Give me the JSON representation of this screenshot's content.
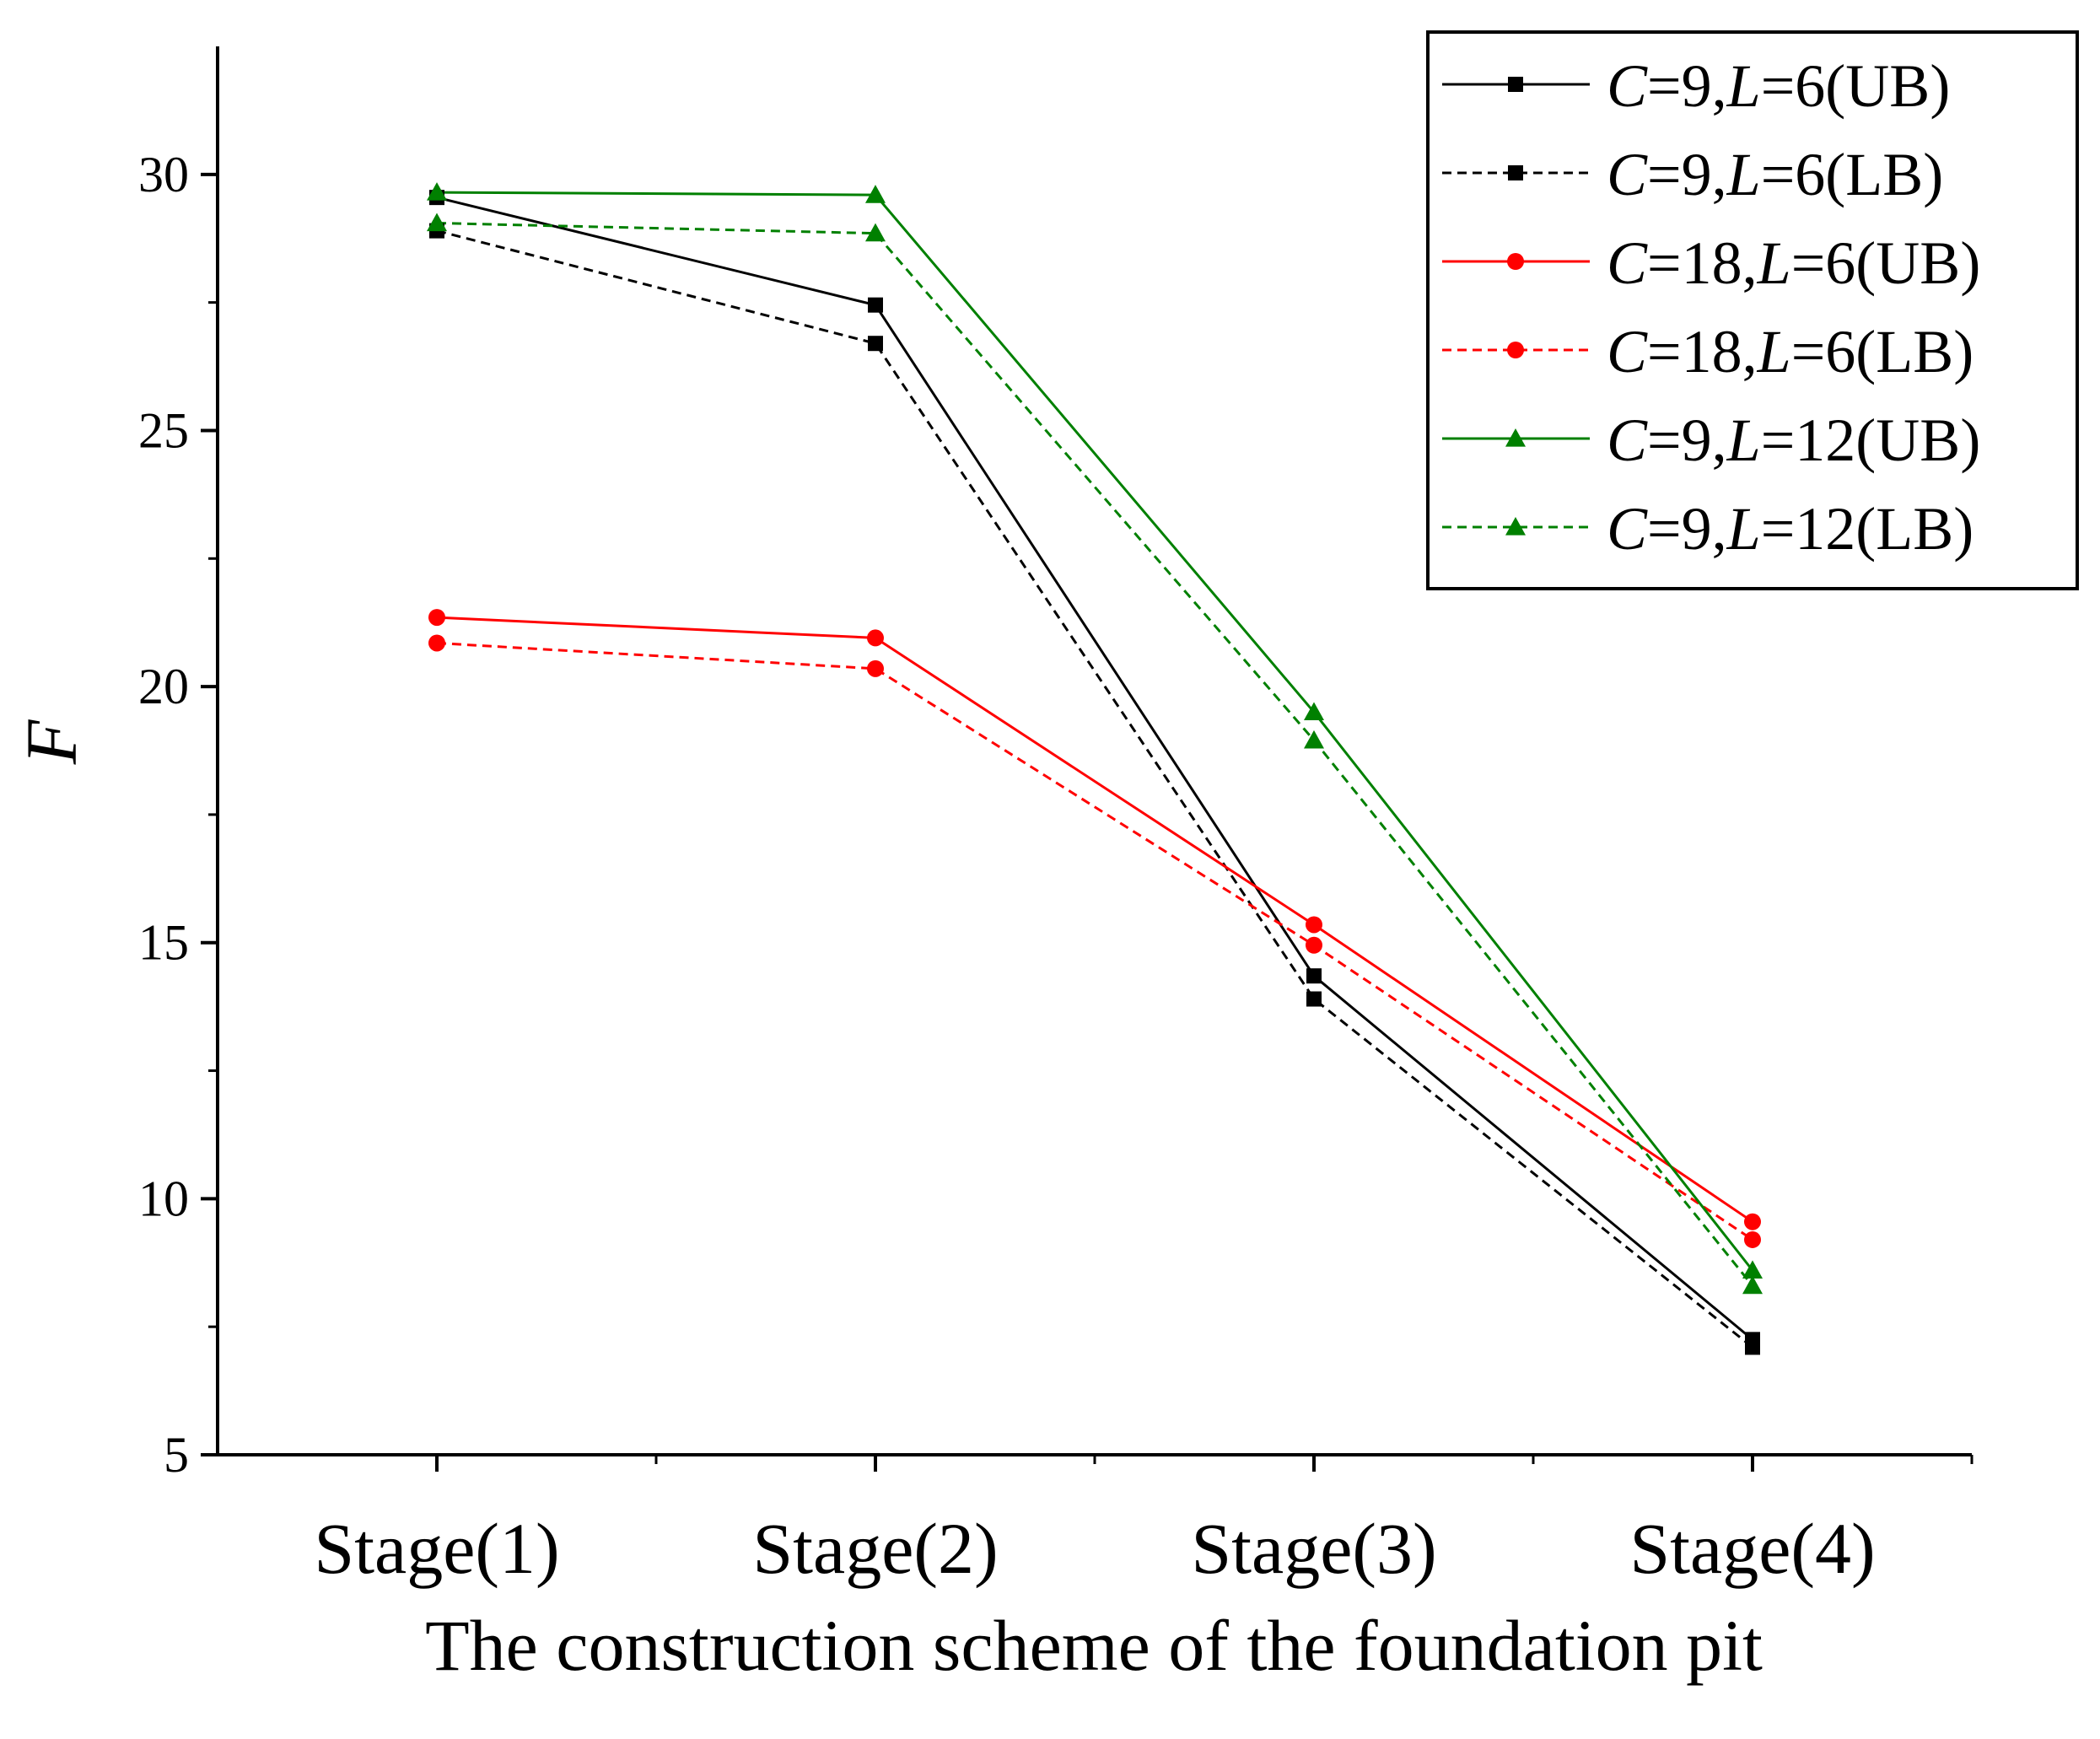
{
  "chart_data": {
    "type": "line",
    "title": "",
    "xlabel": "The construction scheme of the foundation pit",
    "ylabel": "F",
    "categories": [
      "Stage(1)",
      "Stage(2)",
      "Stage(3)",
      "Stage(4)"
    ],
    "ylim": [
      5,
      32.5
    ],
    "yticks": [
      5,
      10,
      15,
      20,
      25,
      30
    ],
    "ytick_labels": [
      "5",
      "10",
      "15",
      "20",
      "25",
      "30"
    ],
    "grid": false,
    "legend_position": "top-right",
    "series": [
      {
        "name": "C=9,L=6(UB)",
        "c": "9",
        "l": "6",
        "bound": "UB",
        "color": "#000000",
        "dashed": false,
        "marker": "square",
        "values": [
          29.55,
          27.45,
          14.35,
          7.25
        ]
      },
      {
        "name": "C=9,L=6(LB)",
        "c": "9",
        "l": "6",
        "bound": "LB",
        "color": "#000000",
        "dashed": true,
        "marker": "square",
        "values": [
          28.9,
          26.7,
          13.9,
          7.1
        ]
      },
      {
        "name": "C=18,L=6(UB)",
        "c": "18",
        "l": "6",
        "bound": "UB",
        "color": "#ff0000",
        "dashed": false,
        "marker": "circle",
        "values": [
          21.35,
          20.95,
          15.35,
          9.55
        ]
      },
      {
        "name": "C=18,L=6(LB)",
        "c": "18",
        "l": "6",
        "bound": "LB",
        "color": "#ff0000",
        "dashed": true,
        "marker": "circle",
        "values": [
          20.85,
          20.35,
          14.95,
          9.2
        ]
      },
      {
        "name": "C=9,L=12(UB)",
        "c": "9",
        "l": "12",
        "bound": "UB",
        "color": "#008000",
        "dashed": false,
        "marker": "triangle",
        "values": [
          29.65,
          29.6,
          19.5,
          8.6
        ]
      },
      {
        "name": "C=9,L=12(LB)",
        "c": "9",
        "l": "12",
        "bound": "LB",
        "color": "#008000",
        "dashed": true,
        "marker": "triangle",
        "values": [
          29.05,
          28.85,
          18.95,
          8.3
        ]
      }
    ]
  }
}
